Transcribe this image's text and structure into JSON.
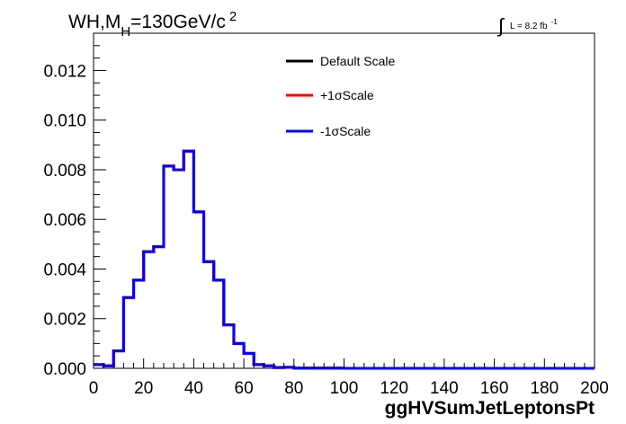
{
  "chart_data": {
    "type": "histogram",
    "title": {
      "main": "WH,M",
      "sub": "H",
      "rest": "=130GeV/c",
      "sup": "2"
    },
    "lumi": {
      "integral": "∫",
      "text": "L = 8.2 fb",
      "sup": "-1"
    },
    "xlabel": "ggHVSumJetLeptonsPt",
    "ylabel": "",
    "xlim": [
      0,
      200
    ],
    "ylim": [
      0,
      0.0135
    ],
    "x_ticks": [
      0,
      20,
      40,
      60,
      80,
      100,
      120,
      140,
      160,
      180,
      200
    ],
    "y_ticks": [
      0.0,
      0.002,
      0.004,
      0.006,
      0.008,
      0.01,
      0.012
    ],
    "y_tick_labels": [
      "0.000",
      "0.002",
      "0.004",
      "0.006",
      "0.008",
      "0.010",
      "0.012"
    ],
    "grid": false,
    "legend_position": "top-right",
    "bin_width": 4,
    "bin_edges_start": 0,
    "series": [
      {
        "name": "Default Scale",
        "color": "#000000",
        "values": [
          0.00015,
          0.0001,
          0.0007,
          0.00285,
          0.00355,
          0.0047,
          0.0049,
          0.00815,
          0.008,
          0.00875,
          0.0063,
          0.0043,
          0.00355,
          0.00175,
          0.001,
          0.0006,
          0.00015,
          0.0001,
          3e-05,
          4e-05,
          1e-05,
          1e-05,
          1e-05,
          1e-05,
          1e-05,
          0,
          0,
          0,
          0,
          0,
          0,
          0,
          0,
          0,
          0,
          0,
          0,
          0,
          0,
          0,
          0,
          0,
          0,
          0,
          0,
          0,
          0,
          0,
          0,
          0
        ]
      },
      {
        "name": "+1σScale",
        "color": "#ff0000",
        "values": [
          0.00015,
          0.0001,
          0.0007,
          0.00285,
          0.00355,
          0.0047,
          0.0049,
          0.00815,
          0.008,
          0.00875,
          0.0063,
          0.0043,
          0.00355,
          0.00175,
          0.001,
          0.0006,
          0.00015,
          0.0001,
          3e-05,
          4e-05,
          1e-05,
          1e-05,
          1e-05,
          1e-05,
          1e-05,
          0,
          0,
          0,
          0,
          0,
          0,
          0,
          0,
          0,
          0,
          0,
          0,
          0,
          0,
          0,
          0,
          0,
          0,
          0,
          0,
          0,
          0,
          0,
          0,
          0
        ]
      },
      {
        "name": "-1σScale",
        "color": "#0000ff",
        "values": [
          0.00015,
          0.0001,
          0.0007,
          0.00285,
          0.00355,
          0.0047,
          0.0049,
          0.00815,
          0.008,
          0.00875,
          0.0063,
          0.0043,
          0.00355,
          0.00175,
          0.001,
          0.0006,
          0.00015,
          0.0001,
          3e-05,
          4e-05,
          1e-05,
          1e-05,
          1e-05,
          1e-05,
          1e-05,
          0,
          0,
          0,
          0,
          0,
          0,
          0,
          0,
          0,
          0,
          0,
          0,
          0,
          0,
          0,
          0,
          0,
          0,
          0,
          0,
          0,
          0,
          0,
          0,
          0
        ]
      }
    ]
  }
}
